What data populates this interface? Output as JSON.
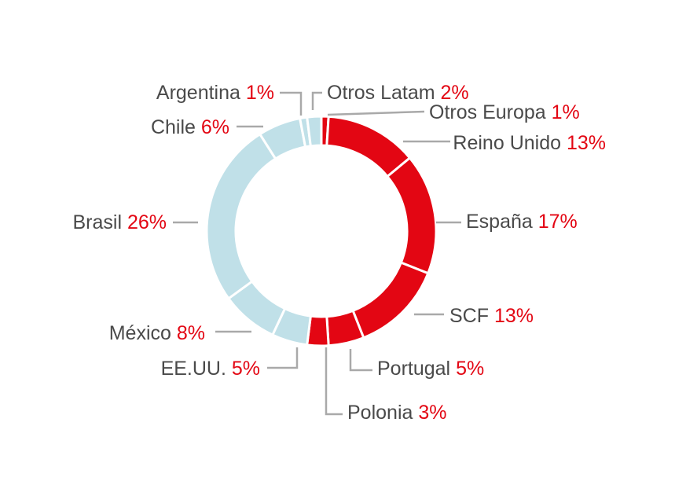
{
  "chart_data": {
    "type": "pie",
    "variant": "donut",
    "slices": [
      {
        "label": "Otros Europa",
        "value_text": "1%",
        "value": 1,
        "group": "europe"
      },
      {
        "label": "Reino Unido",
        "value_text": "13%",
        "value": 13,
        "group": "europe"
      },
      {
        "label": "España",
        "value_text": "17%",
        "value": 17,
        "group": "europe"
      },
      {
        "label": "SCF",
        "value_text": "13%",
        "value": 13,
        "group": "europe"
      },
      {
        "label": "Portugal",
        "value_text": "5%",
        "value": 5,
        "group": "europe"
      },
      {
        "label": "Polonia",
        "value_text": "3%",
        "value": 3,
        "group": "europe"
      },
      {
        "label": "EE.UU.",
        "value_text": "5%",
        "value": 5,
        "group": "americas"
      },
      {
        "label": "México",
        "value_text": "8%",
        "value": 8,
        "group": "americas"
      },
      {
        "label": "Brasil",
        "value_text": "26%",
        "value": 26,
        "group": "americas"
      },
      {
        "label": "Chile",
        "value_text": "6%",
        "value": 6,
        "group": "americas"
      },
      {
        "label": "Argentina",
        "value_text": "1%",
        "value": 1,
        "group": "americas"
      },
      {
        "label": "Otros Latam",
        "value_text": "2%",
        "value": 2,
        "group": "americas"
      }
    ],
    "colors": {
      "europe": "#e30613",
      "americas": "#c0e0e8",
      "label_text": "#4a4a4a",
      "value_text": "#e30613",
      "leader": "#a9a9a9"
    }
  }
}
